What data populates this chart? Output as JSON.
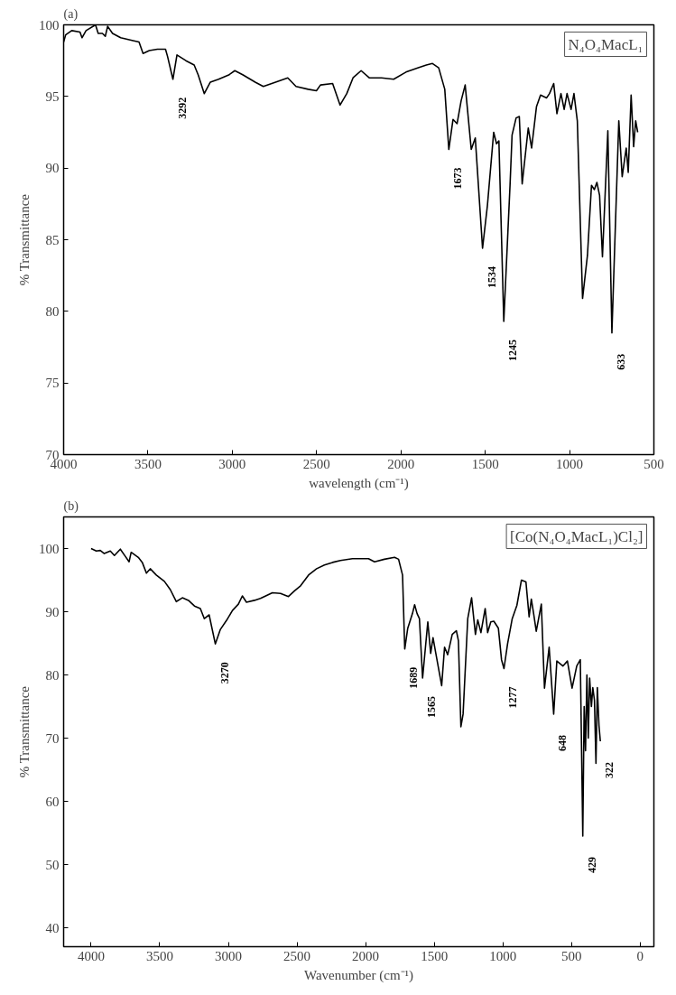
{
  "chart_data": [
    {
      "type": "line",
      "title": "(a)",
      "xlabel": "wavelength (cm⁻¹)",
      "ylabel": "% Transmittance",
      "xlim": [
        4000,
        500
      ],
      "ylim": [
        70,
        100
      ],
      "xticks": [
        4000,
        3500,
        3000,
        2500,
        2000,
        1500,
        1000,
        500
      ],
      "yticks": [
        70,
        75,
        80,
        85,
        90,
        95,
        100
      ],
      "grid": false,
      "line_style": "solid",
      "marker": "none",
      "annotations": [
        "N₄O₄MacL₁",
        {
          "text": "3292",
          "x": 3352,
          "y": 96.2
        },
        {
          "text": "1673",
          "x": 1716,
          "y": 91.3
        },
        {
          "text": "1534",
          "x": 1516,
          "y": 84.4
        },
        {
          "text": "1245",
          "x": 1390,
          "y": 79.3
        },
        {
          "text": "633",
          "x": 749,
          "y": 78.5
        }
      ],
      "series": [
        {
          "color": "#000000",
          "x": [
            4000,
            3988,
            3952,
            3903,
            3891,
            3867,
            3811,
            3795,
            3770,
            3753,
            3739,
            3710,
            3662,
            3589,
            3553,
            3529,
            3492,
            3444,
            3396,
            3384,
            3352,
            3328,
            3275,
            3226,
            3202,
            3166,
            3130,
            3081,
            3021,
            2985,
            2936,
            2864,
            2816,
            2743,
            2671,
            2622,
            2550,
            2501,
            2477,
            2405,
            2361,
            2321,
            2284,
            2236,
            2188,
            2115,
            2043,
            1970,
            1897,
            1849,
            1813,
            1776,
            1740,
            1716,
            1691,
            1667,
            1643,
            1619,
            1583,
            1559,
            1516,
            1487,
            1450,
            1433,
            1419,
            1390,
            1353,
            1341,
            1317,
            1298,
            1281,
            1245,
            1225,
            1196,
            1172,
            1136,
            1119,
            1094,
            1075,
            1051,
            1032,
            1015,
            991,
            974,
            954,
            923,
            894,
            870,
            853,
            838,
            822,
            805,
            773,
            749,
            708,
            688,
            664,
            652,
            635,
            620,
            608,
            596
          ],
          "values": [
            98.8,
            99.3,
            99.6,
            99.5,
            99.1,
            99.6,
            100,
            99.4,
            99.4,
            99.2,
            99.9,
            99.4,
            99.1,
            98.9,
            98.8,
            98.0,
            98.2,
            98.3,
            98.3,
            97.8,
            96.2,
            97.9,
            97.5,
            97.2,
            96.5,
            95.2,
            96.0,
            96.2,
            96.5,
            96.8,
            96.5,
            96.0,
            95.7,
            96.0,
            96.3,
            95.7,
            95.5,
            95.4,
            95.8,
            95.9,
            94.4,
            95.2,
            96.3,
            96.8,
            96.3,
            96.3,
            96.2,
            96.7,
            97.0,
            97.2,
            97.3,
            97.0,
            95.5,
            91.3,
            93.4,
            93.1,
            94.7,
            95.8,
            91.3,
            92.1,
            84.4,
            87.4,
            92.5,
            91.7,
            91.9,
            79.3,
            88.8,
            92.3,
            93.5,
            93.6,
            88.9,
            92.8,
            91.4,
            94.3,
            95.1,
            94.9,
            95.2,
            95.9,
            93.8,
            95.2,
            94.1,
            95.2,
            94.1,
            95.2,
            93.3,
            80.9,
            83.9,
            88.8,
            88.5,
            89.0,
            88.1,
            83.8,
            92.6,
            78.5,
            93.3,
            89.4,
            91.4,
            89.7,
            95.1,
            91.5,
            93.3,
            92.5
          ]
        }
      ]
    },
    {
      "type": "line",
      "title": "(b)",
      "xlabel": "Wavenumber (cm⁻¹)",
      "ylabel": "% Transmittance",
      "xlim": [
        4200,
        -100
      ],
      "ylim": [
        37,
        105
      ],
      "xticks": [
        4000,
        3500,
        3000,
        2500,
        2000,
        1500,
        1000,
        500,
        0
      ],
      "yticks": [
        40,
        50,
        60,
        70,
        80,
        90,
        100
      ],
      "grid": false,
      "line_style": "solid",
      "marker": "none",
      "annotations": [
        "[Co(N₄O₄MacL₁)Cl₂]",
        {
          "text": "3270",
          "x": 3095,
          "y": 84.9
        },
        {
          "text": "1689",
          "x": 1715,
          "y": 84.1
        },
        {
          "text": "1565",
          "x": 1585,
          "y": 79.5
        },
        {
          "text": "1277",
          "x": 992,
          "y": 81.0
        },
        {
          "text": "648",
          "x": 630,
          "y": 73.8
        },
        {
          "text": "429",
          "x": 418,
          "y": 54.5
        },
        {
          "text": "322",
          "x": 290,
          "y": 69.5
        }
      ],
      "series": [
        {
          "color": "#000000",
          "x": [
            4000,
            3962,
            3933,
            3904,
            3860,
            3830,
            3787,
            3752,
            3723,
            3708,
            3656,
            3627,
            3597,
            3569,
            3525,
            3466,
            3423,
            3379,
            3335,
            3291,
            3247,
            3204,
            3175,
            3140,
            3095,
            3058,
            3014,
            2970,
            2927,
            2898,
            2868,
            2810,
            2766,
            2679,
            2620,
            2562,
            2518,
            2474,
            2416,
            2357,
            2300,
            2241,
            2183,
            2096,
            1979,
            1935,
            1863,
            1789,
            1760,
            1731,
            1715,
            1693,
            1659,
            1643,
            1625,
            1608,
            1585,
            1547,
            1526,
            1509,
            1491,
            1446,
            1425,
            1402,
            1369,
            1339,
            1324,
            1306,
            1290,
            1256,
            1228,
            1200,
            1183,
            1160,
            1129,
            1111,
            1088,
            1066,
            1033,
            1010,
            992,
            966,
            932,
            898,
            865,
            832,
            809,
            793,
            776,
            757,
            720,
            697,
            663,
            630,
            607,
            563,
            530,
            496,
            462,
            436,
            418,
            408,
            398,
            388,
            378,
            368,
            355,
            345,
            333,
            322,
            312,
            300,
            290
          ],
          "values": [
            100,
            99.6,
            99.7,
            99.2,
            99.6,
            98.9,
            99.9,
            98.8,
            97.9,
            99.4,
            98.6,
            97.8,
            96.1,
            96.8,
            95.8,
            94.8,
            93.5,
            91.6,
            92.2,
            91.8,
            90.9,
            90.5,
            88.9,
            89.5,
            84.9,
            87.2,
            88.6,
            90.2,
            91.2,
            92.5,
            91.5,
            91.8,
            92.1,
            93.0,
            92.9,
            92.4,
            93.3,
            94.1,
            95.8,
            96.8,
            97.4,
            97.8,
            98.1,
            98.4,
            98.4,
            97.9,
            98.3,
            98.6,
            98.3,
            95.8,
            84.1,
            87.4,
            89.7,
            91.1,
            89.7,
            88.9,
            79.5,
            88.4,
            83.4,
            85.9,
            83.7,
            78.3,
            84.4,
            83.2,
            86.4,
            87.0,
            85.4,
            71.8,
            73.8,
            88.9,
            92.2,
            86.4,
            88.7,
            86.7,
            90.5,
            86.7,
            88.4,
            88.5,
            87.4,
            82.4,
            81.0,
            84.9,
            88.9,
            91.0,
            95.0,
            94.7,
            89.2,
            92.0,
            89.7,
            86.9,
            91.2,
            77.9,
            84.4,
            73.8,
            82.2,
            81.4,
            82.2,
            77.9,
            81.4,
            82.4,
            54.5,
            75,
            68,
            80,
            70,
            79.5,
            75,
            78,
            76,
            66,
            78,
            72,
            69.5
          ]
        }
      ]
    }
  ]
}
